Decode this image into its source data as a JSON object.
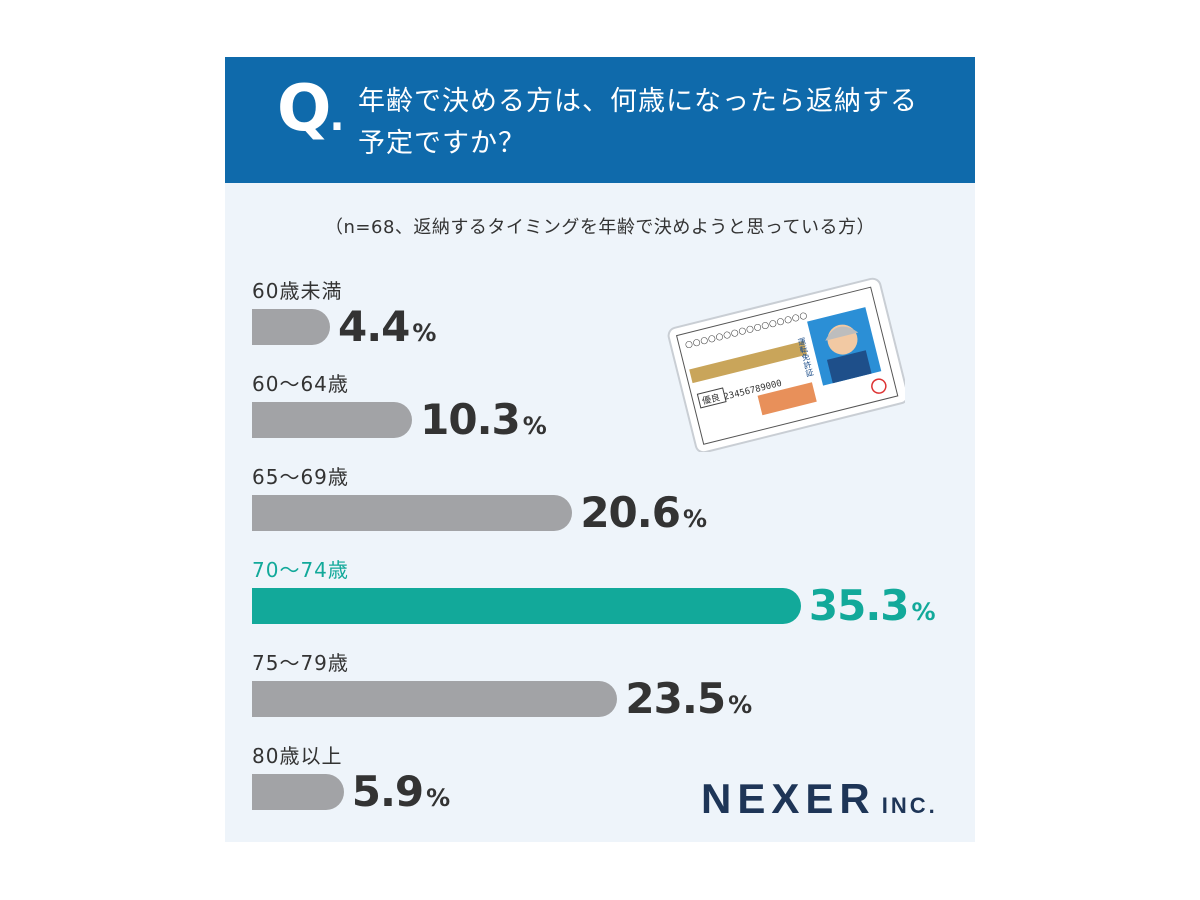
{
  "header": {
    "q_mark": "Q",
    "q_dot": ".",
    "question_line1": "年齢で決める方は、何歳になったら返納する",
    "question_line2": "予定ですか？"
  },
  "note": "（n=68、返納するタイミングを年齢で決めようと思っている方）",
  "colors": {
    "header_bg": "#0f6aab",
    "bar_default": "#a2a3a6",
    "bar_highlight": "#12a99a",
    "text": "#333333"
  },
  "license_card": {
    "title_vertical": "運転免許証",
    "number": "0123456789000",
    "dots_top": "○○○○○○○○○○○○○○○○",
    "dots_right": "○○○○○○○",
    "status": "優良"
  },
  "logo": {
    "main": "NEXER",
    "suffix": "INC."
  },
  "chart_data": {
    "type": "bar",
    "orientation": "horizontal",
    "categories": [
      "60歳未満",
      "60～64歳",
      "65～69歳",
      "70～74歳",
      "75～79歳",
      "80歳以上"
    ],
    "values": [
      4.4,
      10.3,
      20.6,
      35.3,
      23.5,
      5.9
    ],
    "value_labels": [
      "4.4",
      "10.3",
      "20.6",
      "35.3",
      "23.5",
      "5.9"
    ],
    "unit": "%",
    "highlight_index": 3,
    "title": "年齢で決める方は、何歳になったら返納する予定ですか？"
  }
}
